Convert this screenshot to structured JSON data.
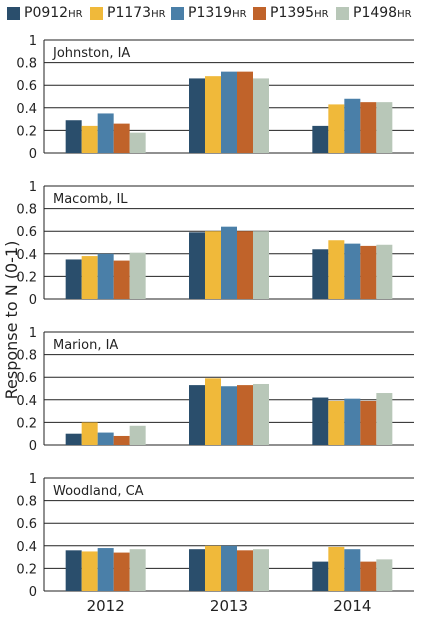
{
  "legend": {
    "items": [
      {
        "main": "P0912",
        "sub": "HR",
        "color": "#2a4e6c"
      },
      {
        "main": "P1173",
        "sub": "HR",
        "color": "#f0b93a"
      },
      {
        "main": "P1319",
        "sub": "HR",
        "color": "#4a7fa8"
      },
      {
        "main": "P1395",
        "sub": "HR",
        "color": "#c0632a"
      },
      {
        "main": "P1498",
        "sub": "HR",
        "color": "#b8c7b8"
      }
    ]
  },
  "chart_data": [
    {
      "type": "bar",
      "title": "Johnston, IA",
      "categories": [
        "2012",
        "2013",
        "2014"
      ],
      "ylim": [
        0,
        1
      ],
      "yticks": [
        "0",
        "0.2",
        "0.4",
        "0.6",
        "0.8",
        "1"
      ],
      "grid": true,
      "series": [
        {
          "name": "P0912HR",
          "values": [
            0.29,
            0.66,
            0.24
          ]
        },
        {
          "name": "P1173HR",
          "values": [
            0.24,
            0.68,
            0.43
          ]
        },
        {
          "name": "P1319HR",
          "values": [
            0.35,
            0.72,
            0.48
          ]
        },
        {
          "name": "P1395HR",
          "values": [
            0.26,
            0.72,
            0.45
          ]
        },
        {
          "name": "P1498HR",
          "values": [
            0.18,
            0.66,
            0.45
          ]
        }
      ]
    },
    {
      "type": "bar",
      "title": "Macomb, IL",
      "categories": [
        "2012",
        "2013",
        "2014"
      ],
      "ylim": [
        0,
        1
      ],
      "yticks": [
        "0",
        "0.2",
        "0.4",
        "0.6",
        "0.8",
        "1"
      ],
      "grid": true,
      "series": [
        {
          "name": "P0912HR",
          "values": [
            0.35,
            0.59,
            0.44
          ]
        },
        {
          "name": "P1173HR",
          "values": [
            0.38,
            0.6,
            0.52
          ]
        },
        {
          "name": "P1319HR",
          "values": [
            0.4,
            0.64,
            0.49
          ]
        },
        {
          "name": "P1395HR",
          "values": [
            0.34,
            0.6,
            0.47
          ]
        },
        {
          "name": "P1498HR",
          "values": [
            0.41,
            0.6,
            0.48
          ]
        }
      ]
    },
    {
      "type": "bar",
      "title": "Marion, IA",
      "categories": [
        "2012",
        "2013",
        "2014"
      ],
      "ylim": [
        0,
        1
      ],
      "yticks": [
        "0",
        "0.2",
        "0.4",
        "0.6",
        "0.8",
        "1"
      ],
      "grid": true,
      "series": [
        {
          "name": "P0912HR",
          "values": [
            0.1,
            0.53,
            0.42
          ]
        },
        {
          "name": "P1173HR",
          "values": [
            0.2,
            0.59,
            0.39
          ]
        },
        {
          "name": "P1319HR",
          "values": [
            0.11,
            0.52,
            0.41
          ]
        },
        {
          "name": "P1395HR",
          "values": [
            0.08,
            0.53,
            0.39
          ]
        },
        {
          "name": "P1498HR",
          "values": [
            0.17,
            0.54,
            0.46
          ]
        }
      ]
    },
    {
      "type": "bar",
      "title": "Woodland, CA",
      "categories": [
        "2012",
        "2013",
        "2014"
      ],
      "ylim": [
        0,
        1
      ],
      "yticks": [
        "0",
        "0.2",
        "0.4",
        "0.6",
        "0.8",
        "1"
      ],
      "grid": true,
      "series": [
        {
          "name": "P0912HR",
          "values": [
            0.36,
            0.37,
            0.26
          ]
        },
        {
          "name": "P1173HR",
          "values": [
            0.35,
            0.4,
            0.39
          ]
        },
        {
          "name": "P1319HR",
          "values": [
            0.38,
            0.4,
            0.37
          ]
        },
        {
          "name": "P1395HR",
          "values": [
            0.34,
            0.36,
            0.26
          ]
        },
        {
          "name": "P1498HR",
          "values": [
            0.37,
            0.37,
            0.28
          ]
        }
      ]
    }
  ],
  "ylabel": "Response to N (0-1)",
  "xlabels": [
    "2012",
    "2013",
    "2014"
  ]
}
